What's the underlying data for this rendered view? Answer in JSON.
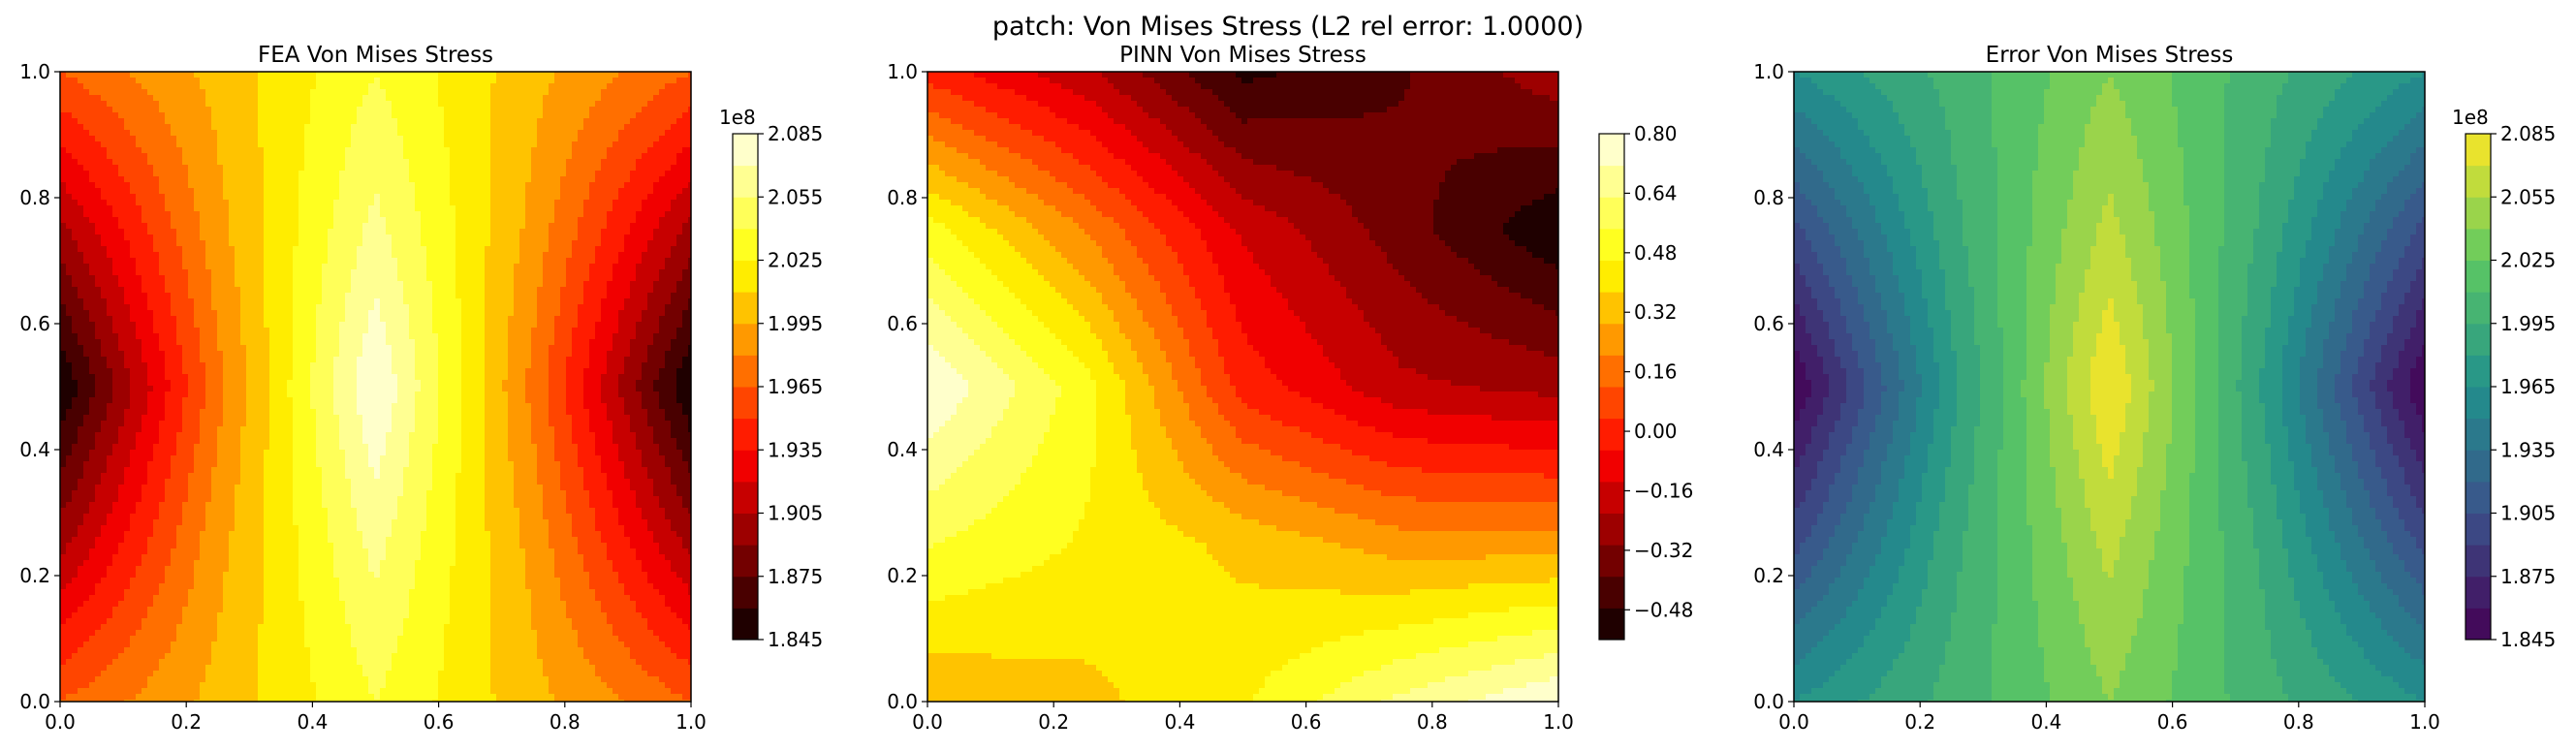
{
  "figure": {
    "suptitle": "patch: Von Mises Stress (L2 rel error: 1.0000)"
  },
  "chart_data": [
    {
      "type": "heatmap",
      "title": "FEA Von Mises Stress",
      "xlim": [
        0,
        1
      ],
      "ylim": [
        0,
        1
      ],
      "xticks": [
        "0.0",
        "0.2",
        "0.4",
        "0.6",
        "0.8",
        "1.0"
      ],
      "yticks": [
        "0.0",
        "0.2",
        "0.4",
        "0.6",
        "0.8",
        "1.0"
      ],
      "colormap": "hot",
      "grid_x": [
        0,
        0.25,
        0.5,
        0.75,
        1
      ],
      "grid_y": [
        0,
        0.25,
        0.5,
        0.75,
        1
      ],
      "z_unit_scale": "1e8",
      "z": [
        [
          1.965,
          2.0,
          2.04,
          2.0,
          1.965
        ],
        [
          1.9,
          1.99,
          2.06,
          1.99,
          1.9
        ],
        [
          1.845,
          1.975,
          2.085,
          1.975,
          1.845
        ],
        [
          1.9,
          1.99,
          2.06,
          1.99,
          1.9
        ],
        [
          1.965,
          2.0,
          2.04,
          2.0,
          1.965
        ]
      ],
      "colorbar": {
        "offset_label": "1e8",
        "min": 1.845,
        "max": 2.085,
        "ticks": [
          "1.845",
          "1.875",
          "1.905",
          "1.935",
          "1.965",
          "1.995",
          "2.025",
          "2.055",
          "2.085"
        ]
      }
    },
    {
      "type": "heatmap",
      "title": "PINN Von Mises Stress",
      "xlim": [
        0,
        1
      ],
      "ylim": [
        0,
        1
      ],
      "xticks": [
        "0.0",
        "0.2",
        "0.4",
        "0.6",
        "0.8",
        "1.0"
      ],
      "yticks": [
        "0.0",
        "0.2",
        "0.4",
        "0.6",
        "0.8",
        "1.0"
      ],
      "colormap": "hot",
      "grid_x": [
        0,
        0.25,
        0.5,
        0.75,
        1
      ],
      "grid_y": [
        0,
        0.25,
        0.5,
        0.75,
        1
      ],
      "z": [
        [
          0.3,
          0.35,
          0.45,
          0.65,
          0.8
        ],
        [
          0.55,
          0.45,
          0.35,
          0.25,
          0.25
        ],
        [
          0.8,
          0.5,
          0.0,
          -0.2,
          -0.25
        ],
        [
          0.5,
          0.2,
          -0.15,
          -0.35,
          -0.55
        ],
        [
          0.0,
          -0.2,
          -0.5,
          -0.4,
          -0.25
        ]
      ],
      "colorbar": {
        "min": -0.56,
        "max": 0.8,
        "ticks": [
          "−0.48",
          "−0.32",
          "−0.16",
          "0.00",
          "0.16",
          "0.32",
          "0.48",
          "0.64",
          "0.80"
        ]
      }
    },
    {
      "type": "heatmap",
      "title": "Error Von Mises Stress",
      "xlim": [
        0,
        1
      ],
      "ylim": [
        0,
        1
      ],
      "xticks": [
        "0.0",
        "0.2",
        "0.4",
        "0.6",
        "0.8",
        "1.0"
      ],
      "yticks": [
        "0.0",
        "0.2",
        "0.4",
        "0.6",
        "0.8",
        "1.0"
      ],
      "colormap": "viridis",
      "grid_x": [
        0,
        0.25,
        0.5,
        0.75,
        1
      ],
      "grid_y": [
        0,
        0.25,
        0.5,
        0.75,
        1
      ],
      "z_unit_scale": "1e8",
      "z": [
        [
          1.965,
          2.0,
          2.04,
          2.0,
          1.965
        ],
        [
          1.9,
          1.99,
          2.06,
          1.99,
          1.9
        ],
        [
          1.845,
          1.975,
          2.085,
          1.975,
          1.845
        ],
        [
          1.9,
          1.99,
          2.06,
          1.99,
          1.9
        ],
        [
          1.965,
          2.0,
          2.04,
          2.0,
          1.965
        ]
      ],
      "colorbar": {
        "offset_label": "1e8",
        "min": 1.845,
        "max": 2.085,
        "ticks": [
          "1.845",
          "1.875",
          "1.905",
          "1.935",
          "1.965",
          "1.995",
          "2.025",
          "2.055",
          "2.085"
        ]
      }
    }
  ]
}
